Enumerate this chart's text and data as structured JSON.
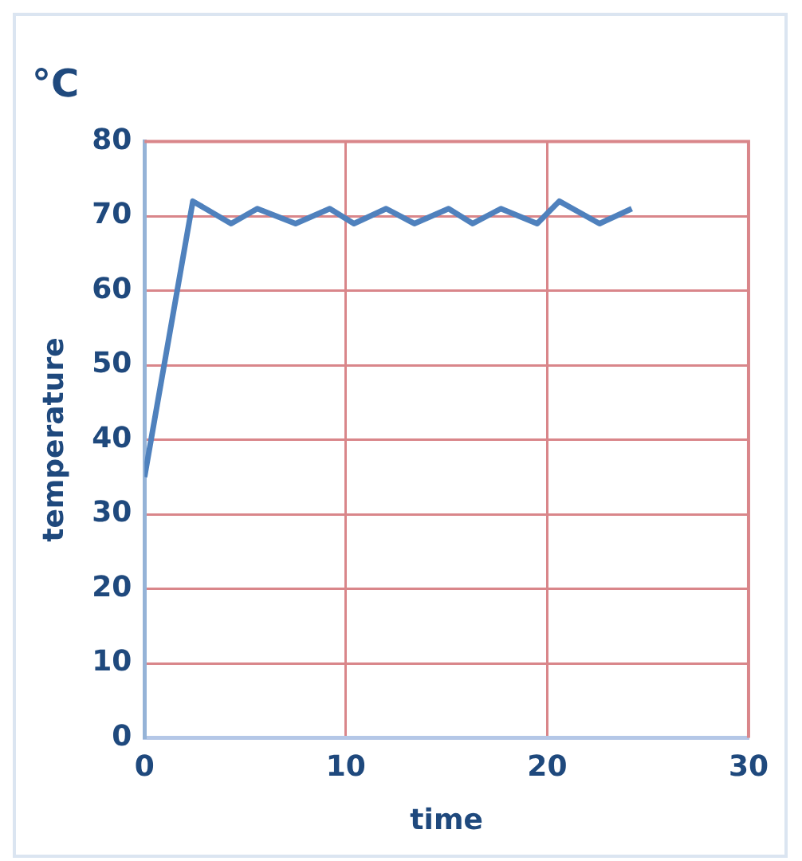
{
  "chart_data": {
    "type": "line",
    "title": "°C",
    "xlabel": "time",
    "ylabel": "temperature",
    "x": [
      0,
      2.4,
      4.3,
      5.6,
      7.5,
      9.2,
      10.4,
      12.0,
      13.4,
      15.1,
      16.3,
      17.7,
      19.5,
      20.6,
      22.6,
      24.2
    ],
    "series": [
      {
        "color": "#4f81bd",
        "values": [
          35,
          72,
          69,
          71,
          69,
          71,
          69,
          71,
          69,
          71,
          69,
          71,
          69,
          72,
          69,
          71
        ]
      }
    ],
    "xlim": [
      0,
      30
    ],
    "xticks": [
      0,
      10,
      20,
      30
    ],
    "ylim": [
      0,
      80
    ],
    "yticks": [
      0,
      10,
      20,
      30,
      40,
      50,
      60,
      70,
      80
    ],
    "grid": true,
    "marker": "none",
    "line_style": "solid"
  }
}
